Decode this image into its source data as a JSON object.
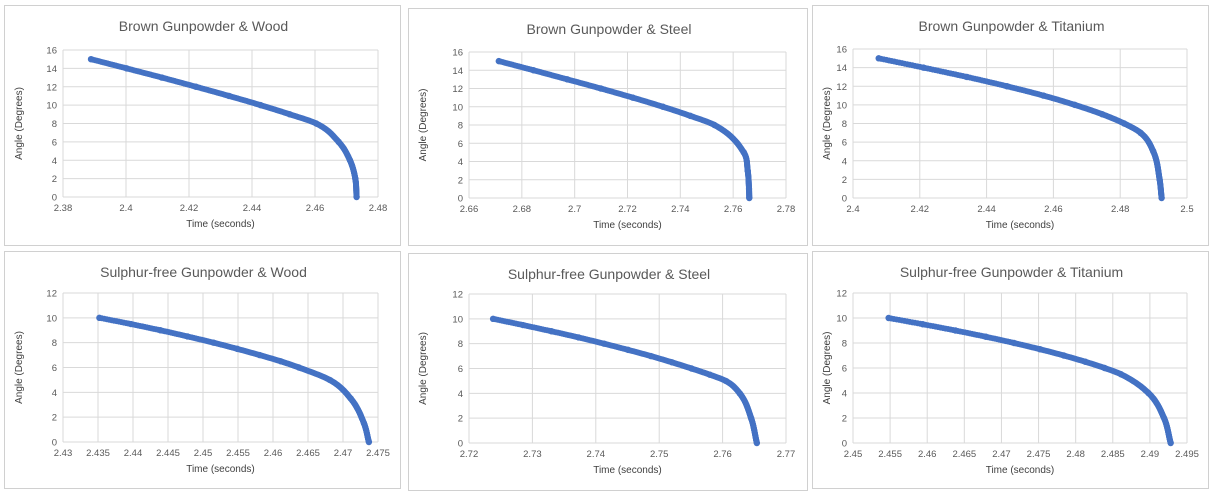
{
  "line_color": "#4472c4",
  "chart_data": [
    {
      "type": "scatter",
      "title": "Brown Gunpowder & Wood",
      "xlabel": "Time (seconds)",
      "ylabel": "Angle (Degrees)",
      "xlim": [
        2.38,
        2.48
      ],
      "ylim": [
        0,
        16
      ],
      "xticks": [
        "2.38",
        "2.4",
        "2.42",
        "2.44",
        "2.46",
        "2.48"
      ],
      "yticks": [
        "0",
        "2",
        "4",
        "6",
        "8",
        "10",
        "12",
        "14",
        "16"
      ],
      "grid": true,
      "series": [
        {
          "x": [
            2.3889,
            2.4002,
            2.4114,
            2.4222,
            2.4327,
            2.4427,
            2.452,
            2.4604,
            2.4675,
            2.4711,
            2.4728,
            2.4732
          ],
          "y": [
            15,
            14,
            13,
            12,
            11,
            10,
            9,
            8,
            6,
            4,
            2,
            0
          ]
        }
      ]
    },
    {
      "type": "scatter",
      "title": "Brown Gunpowder & Steel",
      "xlabel": "Time (seconds)",
      "ylabel": "Angle (Degrees)",
      "xlim": [
        2.66,
        2.78
      ],
      "ylim": [
        0,
        16
      ],
      "xticks": [
        "2.66",
        "2.68",
        "2.7",
        "2.72",
        "2.74",
        "2.76",
        "2.78"
      ],
      "yticks": [
        "0",
        "2",
        "4",
        "6",
        "8",
        "10",
        "12",
        "14",
        "16"
      ],
      "grid": true,
      "series": [
        {
          "x": [
            2.6713,
            2.6844,
            2.6972,
            2.7099,
            2.722,
            2.7334,
            2.7438,
            2.7529,
            2.764,
            2.7655,
            2.766,
            2.7661
          ],
          "y": [
            15,
            14,
            13,
            12,
            11,
            10,
            9,
            8,
            5,
            3,
            1,
            0
          ]
        }
      ]
    },
    {
      "type": "scatter",
      "title": "Brown Gunpowder & Titanium",
      "xlabel": "Time (seconds)",
      "ylabel": "Angle (Degrees)",
      "xlim": [
        2.4,
        2.5
      ],
      "ylim": [
        0,
        16
      ],
      "xticks": [
        "2.4",
        "2.42",
        "2.44",
        "2.46",
        "2.48",
        "2.5"
      ],
      "yticks": [
        "0",
        "2",
        "4",
        "6",
        "8",
        "10",
        "12",
        "14",
        "16"
      ],
      "grid": true,
      "series": [
        {
          "x": [
            2.4077,
            2.4211,
            2.4341,
            2.4461,
            2.457,
            2.4664,
            2.4746,
            2.4812,
            2.4861,
            2.4899,
            2.4918,
            2.4924
          ],
          "y": [
            15,
            14,
            13,
            12,
            11,
            10,
            9,
            8,
            7,
            5,
            2,
            0
          ]
        }
      ]
    },
    {
      "type": "scatter",
      "title": "Sulphur-free Gunpowder & Wood",
      "xlabel": "Time (seconds)",
      "ylabel": "Angle (Degrees)",
      "xlim": [
        2.43,
        2.475
      ],
      "ylim": [
        0,
        12
      ],
      "xticks": [
        "2.43",
        "2.435",
        "2.44",
        "2.445",
        "2.45",
        "2.455",
        "2.46",
        "2.465",
        "2.47",
        "2.475"
      ],
      "yticks": [
        "0",
        "2",
        "4",
        "6",
        "8",
        "10",
        "12"
      ],
      "grid": true,
      "series": [
        {
          "x": [
            2.4352,
            2.4397,
            2.4439,
            2.4478,
            2.4515,
            2.4549,
            2.4581,
            2.4611,
            2.4637,
            2.4681,
            2.4711,
            2.473,
            2.4737
          ],
          "y": [
            10,
            9.5,
            9,
            8.5,
            8,
            7.5,
            7,
            6.5,
            6,
            5,
            3.5,
            1.5,
            0
          ]
        }
      ]
    },
    {
      "type": "scatter",
      "title": "Sulphur-free Gunpowder & Steel",
      "xlabel": "Time (seconds)",
      "ylabel": "Angle (Degrees)",
      "xlim": [
        2.72,
        2.77
      ],
      "ylim": [
        0,
        12
      ],
      "xticks": [
        "2.72",
        "2.73",
        "2.74",
        "2.75",
        "2.76",
        "2.77"
      ],
      "yticks": [
        "0",
        "2",
        "4",
        "6",
        "8",
        "10",
        "12"
      ],
      "grid": true,
      "series": [
        {
          "x": [
            2.7238,
            2.7285,
            2.733,
            2.7373,
            2.7413,
            2.7451,
            2.7487,
            2.752,
            2.7551,
            2.758,
            2.7605,
            2.7627,
            2.7645,
            2.7654
          ],
          "y": [
            10,
            9.5,
            9,
            8.5,
            8,
            7.5,
            7,
            6.5,
            6,
            5.5,
            5,
            4,
            2,
            0
          ]
        }
      ]
    },
    {
      "type": "scatter",
      "title": "Sulphur-free Gunpowder & Titanium",
      "xlabel": "Time (seconds)",
      "ylabel": "Angle (Degrees)",
      "xlim": [
        2.45,
        2.495
      ],
      "ylim": [
        0,
        12
      ],
      "xticks": [
        "2.45",
        "2.455",
        "2.46",
        "2.465",
        "2.47",
        "2.475",
        "2.48",
        "2.485",
        "2.49",
        "2.495"
      ],
      "yticks": [
        "0",
        "2",
        "4",
        "6",
        "8",
        "10",
        "12"
      ],
      "grid": true,
      "series": [
        {
          "x": [
            2.4548,
            2.4594,
            2.4638,
            2.4679,
            2.4717,
            2.4752,
            2.4784,
            2.4813,
            2.4839,
            2.4861,
            2.4898,
            2.4919,
            2.4928
          ],
          "y": [
            10,
            9.5,
            9,
            8.5,
            8,
            7.5,
            7,
            6.5,
            6,
            5.5,
            4,
            2,
            0
          ]
        }
      ]
    }
  ]
}
